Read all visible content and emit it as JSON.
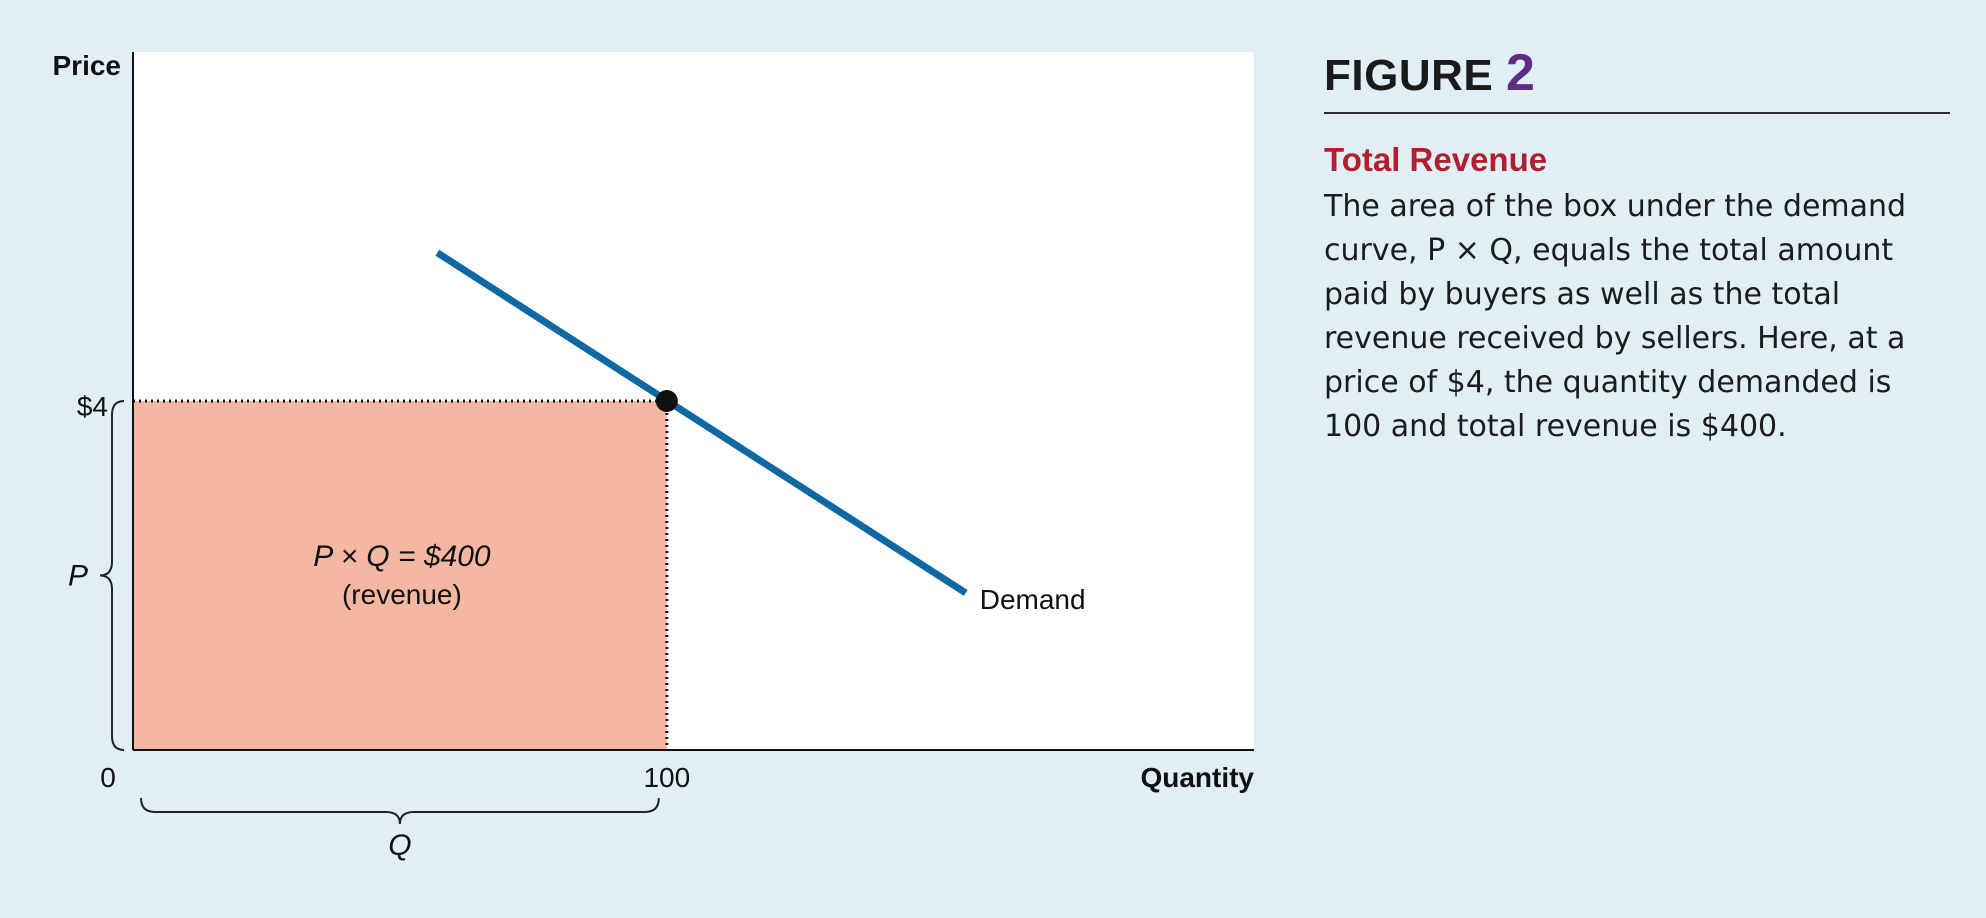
{
  "figure": {
    "label": "FIGURE",
    "number": "2",
    "title": "Total Revenue",
    "caption": "The area of the box under the demand curve, P × Q, equals the total amount paid by buyers as well as the total revenue received by sellers. Here, at a price of $4, the quantity demanded is 100 and total revenue is $400."
  },
  "colors": {
    "background": "#e2eef5",
    "plot_background": "#ffffff",
    "demand_line": "#0d68a3",
    "revenue_box": "#f4b8a2",
    "figure_number": "#5c2d82",
    "caption_title": "#b01f2e"
  },
  "chart_data": {
    "type": "line",
    "ylabel": "Price",
    "xlabel": "Quantity",
    "origin_label": "0",
    "x_tick_labels": [
      "100"
    ],
    "y_tick_labels": [
      "$4"
    ],
    "xlim": [
      0,
      210
    ],
    "ylim": [
      0,
      8
    ],
    "series": [
      {
        "name": "Demand",
        "x": [
          57,
          156
        ],
        "y": [
          5.7,
          1.8
        ]
      }
    ],
    "point": {
      "x": 100,
      "y": 4
    },
    "shaded_area": {
      "x": [
        0,
        100
      ],
      "y": [
        0,
        4
      ],
      "label_line1": "P × Q = $400",
      "label_line2": "(revenue)"
    },
    "bracket_labels": {
      "price": "P",
      "quantity": "Q"
    },
    "grid": false,
    "legend": "none"
  }
}
